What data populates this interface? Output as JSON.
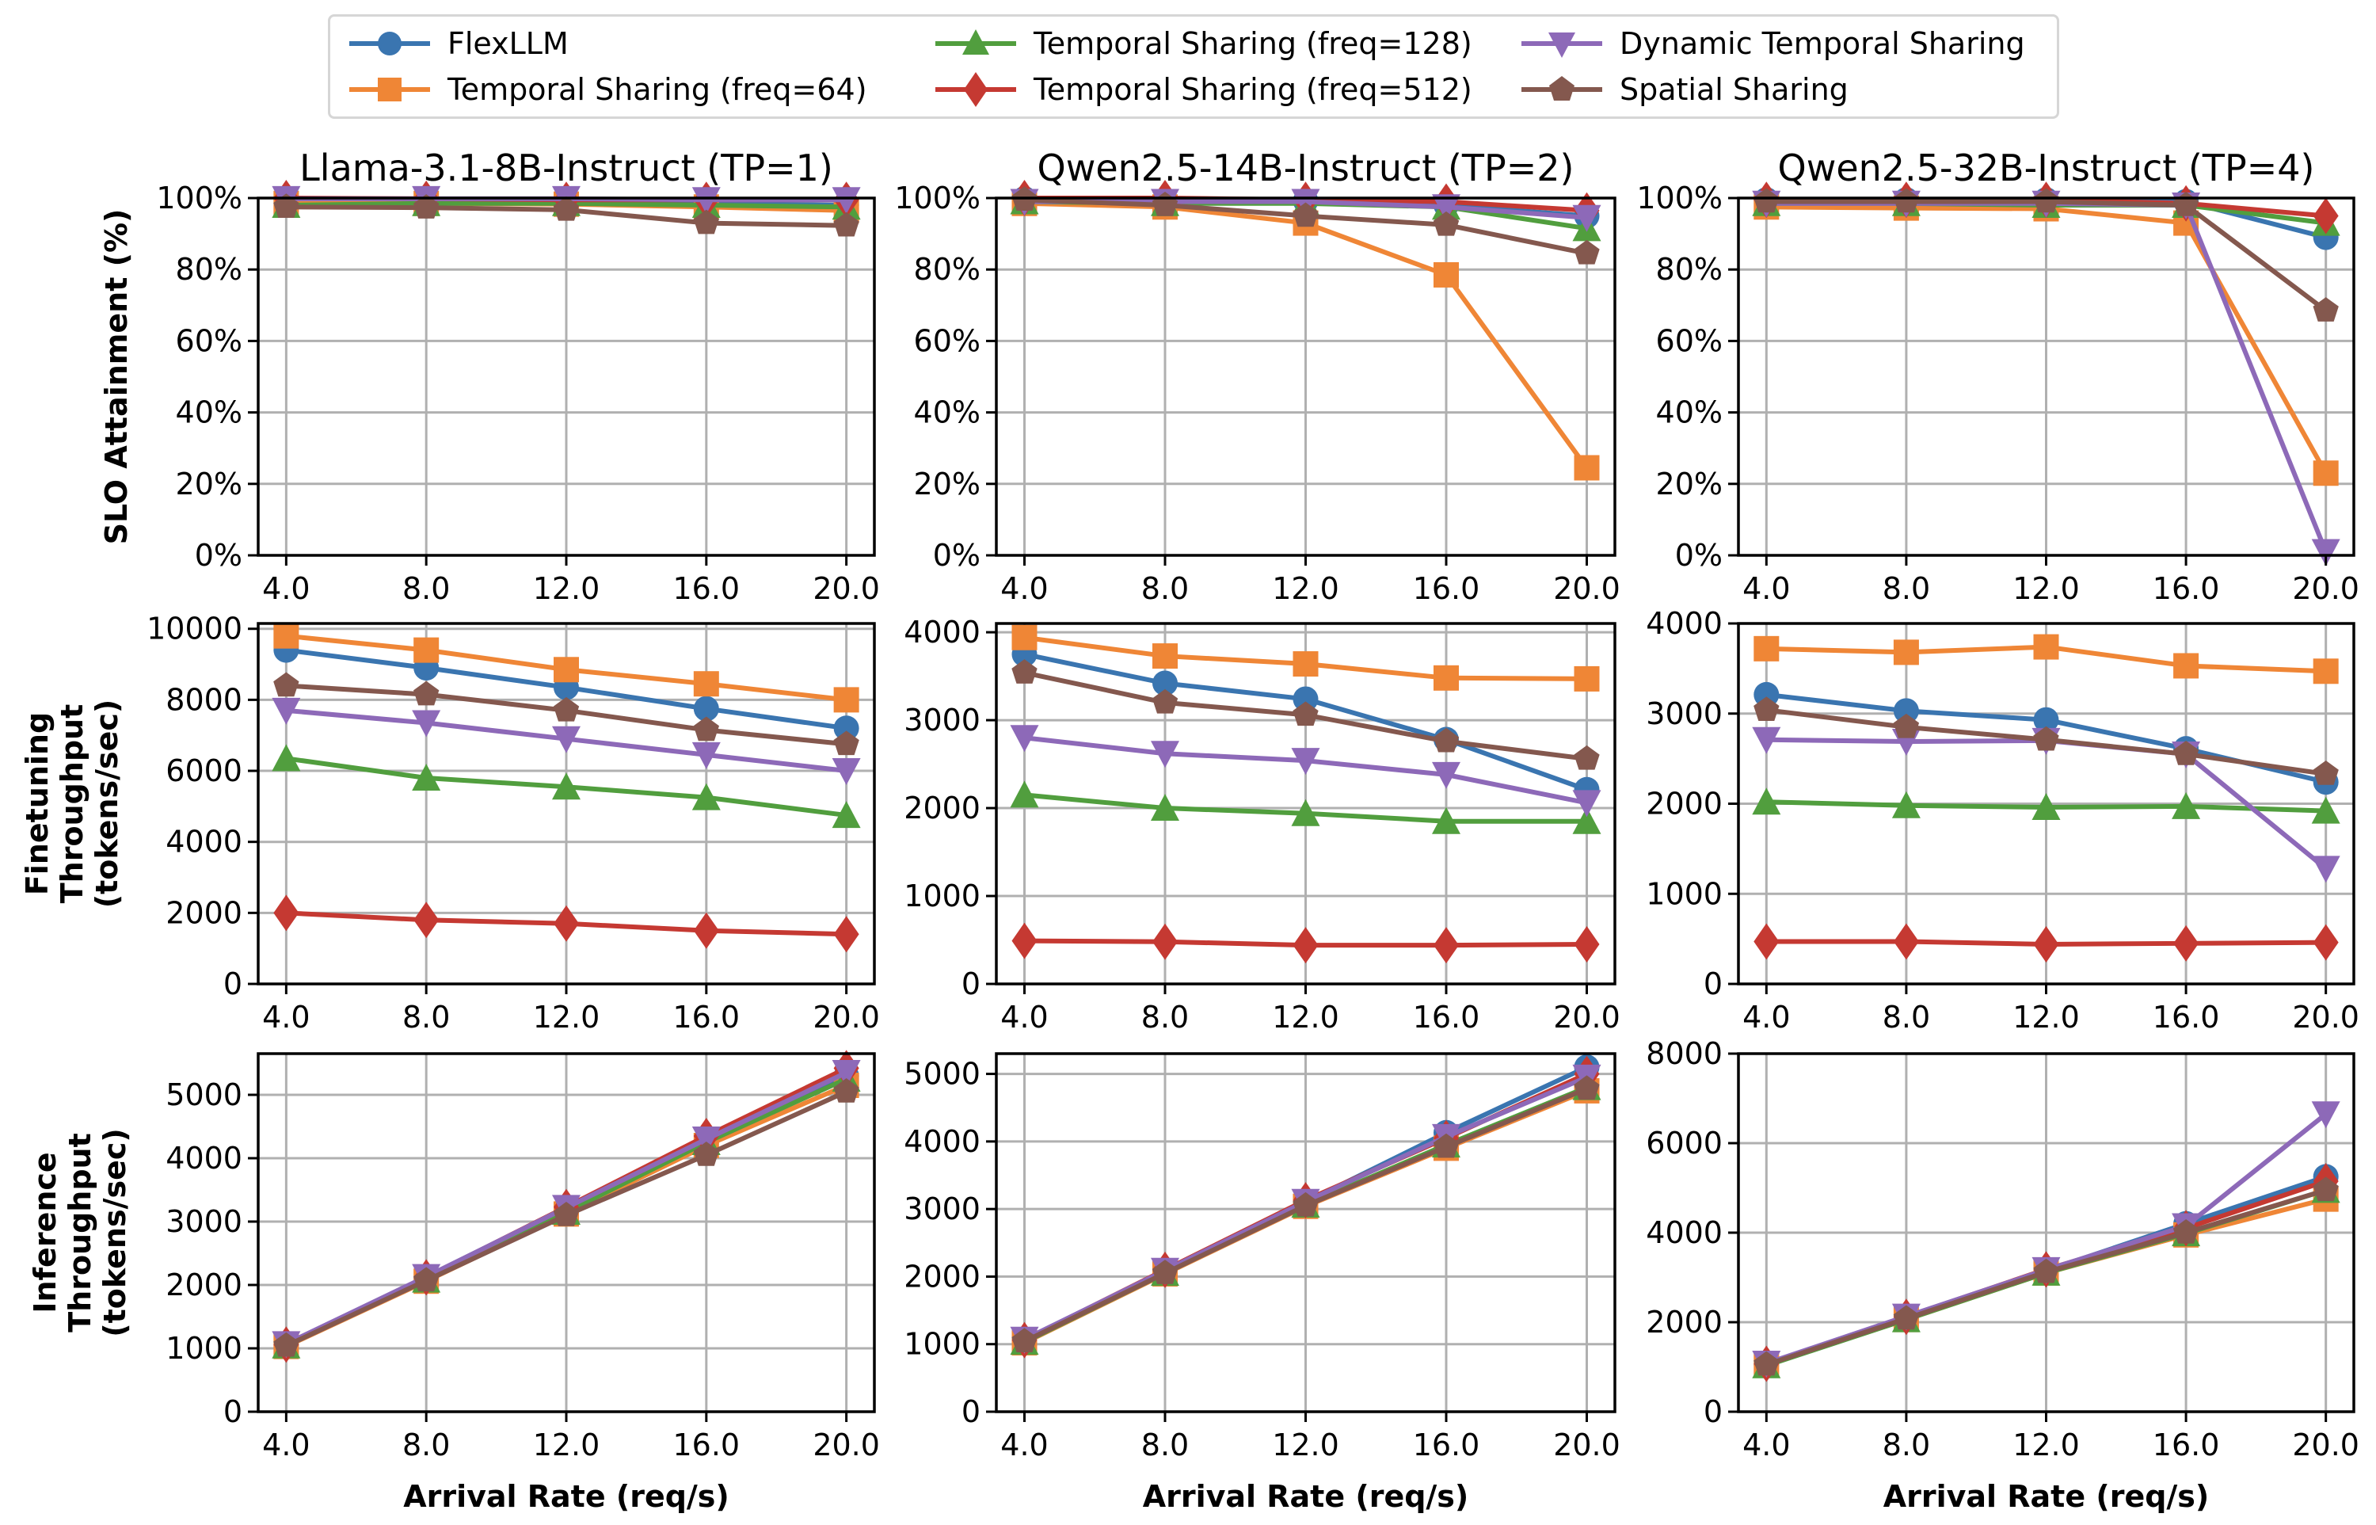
{
  "chart_data": {
    "type": "line",
    "layout": "3x3 grid",
    "legend": {
      "placement": "top-center",
      "columns": 3,
      "entries": [
        {
          "name": "FlexLLM",
          "color": "#3a75b0",
          "marker": "circle"
        },
        {
          "name": "Temporal Sharing (freq=64)",
          "color": "#ef8636",
          "marker": "square"
        },
        {
          "name": "Temporal Sharing (freq=128)",
          "color": "#519e3e",
          "marker": "triangle-up"
        },
        {
          "name": "Temporal Sharing (freq=512)",
          "color": "#c53932",
          "marker": "diamond"
        },
        {
          "name": "Dynamic Temporal Sharing",
          "color": "#8d69b8",
          "marker": "triangle-down"
        },
        {
          "name": "Spatial Sharing",
          "color": "#84584e",
          "marker": "pentagon"
        }
      ]
    },
    "column_titles": [
      "Llama-3.1-8B-Instruct (TP=1)",
      "Qwen2.5-14B-Instruct (TP=2)",
      "Qwen2.5-32B-Instruct (TP=4)"
    ],
    "row_ylabels": [
      [
        "SLO Attainment (%)"
      ],
      [
        "Finetuning",
        "Throughput",
        "(tokens/sec)"
      ],
      [
        "Inference",
        "Throughput",
        "(tokens/sec)"
      ]
    ],
    "xlabel": "Arrival Rate (req/s)",
    "x": [
      4.0,
      8.0,
      12.0,
      16.0,
      20.0
    ],
    "x_tick_labels": [
      "4.0",
      "8.0",
      "12.0",
      "16.0",
      "20.0"
    ],
    "xlim": [
      3.2,
      20.8
    ],
    "grid": true,
    "subplots": [
      {
        "row": 0,
        "col": 0,
        "ylim": [
          0,
          100
        ],
        "yticks": [
          0,
          20,
          40,
          60,
          80,
          100
        ],
        "ytick_labels": [
          "0%",
          "20%",
          "40%",
          "60%",
          "80%",
          "100%"
        ],
        "series": [
          {
            "name": "FlexLLM",
            "values": [
              99.5,
              99.3,
              99.0,
              98.5,
              98.0
            ]
          },
          {
            "name": "Temporal Sharing (freq=64)",
            "values": [
              98.5,
              98.5,
              98.3,
              97.5,
              96.5
            ]
          },
          {
            "name": "Temporal Sharing (freq=128)",
            "values": [
              98.0,
              98.5,
              98.5,
              98.0,
              97.5
            ]
          },
          {
            "name": "Temporal Sharing (freq=512)",
            "values": [
              100,
              99.8,
              99.5,
              99.5,
              99.5
            ]
          },
          {
            "name": "Dynamic Temporal Sharing",
            "values": [
              99.8,
              99.8,
              99.8,
              99.5,
              99.5
            ]
          },
          {
            "name": "Spatial Sharing",
            "values": [
              97.5,
              97.3,
              96.7,
              93.0,
              92.3
            ]
          }
        ]
      },
      {
        "row": 0,
        "col": 1,
        "ylim": [
          0,
          100
        ],
        "yticks": [
          0,
          20,
          40,
          60,
          80,
          100
        ],
        "ytick_labels": [
          "0%",
          "20%",
          "40%",
          "60%",
          "80%",
          "100%"
        ],
        "series": [
          {
            "name": "FlexLLM",
            "values": [
              99.8,
              99.5,
              99.2,
              98.0,
              95.0
            ]
          },
          {
            "name": "Temporal Sharing (freq=64)",
            "values": [
              98.5,
              97.5,
              93.0,
              78.5,
              24.5
            ]
          },
          {
            "name": "Temporal Sharing (freq=128)",
            "values": [
              99.0,
              98.5,
              98.5,
              97.5,
              91.5
            ]
          },
          {
            "name": "Temporal Sharing (freq=512)",
            "values": [
              100,
              100,
              99.5,
              99.0,
              96.5
            ]
          },
          {
            "name": "Dynamic Temporal Sharing",
            "values": [
              99.0,
              99.0,
              99.0,
              97.5,
              94.5
            ]
          },
          {
            "name": "Spatial Sharing",
            "values": [
              99.5,
              98.0,
              95.0,
              92.5,
              84.5
            ]
          }
        ]
      },
      {
        "row": 0,
        "col": 2,
        "ylim": [
          0,
          100
        ],
        "yticks": [
          0,
          20,
          40,
          60,
          80,
          100
        ],
        "ytick_labels": [
          "0%",
          "20%",
          "40%",
          "60%",
          "80%",
          "100%"
        ],
        "series": [
          {
            "name": "FlexLLM",
            "values": [
              99.5,
              99.5,
              99.5,
              99.0,
              89.0
            ]
          },
          {
            "name": "Temporal Sharing (freq=64)",
            "values": [
              97.5,
              97.2,
              97.0,
              93.0,
              23.0
            ]
          },
          {
            "name": "Temporal Sharing (freq=128)",
            "values": [
              98.5,
              98.5,
              98.0,
              98.0,
              93.0
            ]
          },
          {
            "name": "Temporal Sharing (freq=512)",
            "values": [
              99.5,
              99.5,
              99.5,
              98.5,
              95.0
            ]
          },
          {
            "name": "Dynamic Temporal Sharing",
            "values": [
              98.5,
              98.5,
              98.5,
              98.0,
              1.0
            ]
          },
          {
            "name": "Spatial Sharing",
            "values": [
              99.0,
              99.0,
              99.0,
              98.0,
              68.5
            ]
          }
        ]
      },
      {
        "row": 1,
        "col": 0,
        "ylim": [
          0,
          10150
        ],
        "yticks": [
          0,
          2000,
          4000,
          6000,
          8000,
          10000
        ],
        "ytick_labels": [
          "0",
          "2000",
          "4000",
          "6000",
          "8000",
          "10000"
        ],
        "series": [
          {
            "name": "FlexLLM",
            "values": [
              9400,
              8900,
              8350,
              7750,
              7200
            ]
          },
          {
            "name": "Temporal Sharing (freq=64)",
            "values": [
              9800,
              9400,
              8850,
              8450,
              8000
            ]
          },
          {
            "name": "Temporal Sharing (freq=128)",
            "values": [
              6350,
              5800,
              5550,
              5250,
              4750
            ]
          },
          {
            "name": "Temporal Sharing (freq=512)",
            "values": [
              2000,
              1800,
              1700,
              1500,
              1400
            ]
          },
          {
            "name": "Dynamic Temporal Sharing",
            "values": [
              7700,
              7350,
              6900,
              6450,
              6000
            ]
          },
          {
            "name": "Spatial Sharing",
            "values": [
              8400,
              8150,
              7700,
              7150,
              6750
            ]
          }
        ]
      },
      {
        "row": 1,
        "col": 1,
        "ylim": [
          0,
          4100
        ],
        "yticks": [
          0,
          1000,
          2000,
          3000,
          4000
        ],
        "ytick_labels": [
          "0",
          "1000",
          "2000",
          "3000",
          "4000"
        ],
        "series": [
          {
            "name": "FlexLLM",
            "values": [
              3750,
              3420,
              3240,
              2780,
              2210
            ]
          },
          {
            "name": "Temporal Sharing (freq=64)",
            "values": [
              3940,
              3730,
              3640,
              3480,
              3470
            ]
          },
          {
            "name": "Temporal Sharing (freq=128)",
            "values": [
              2150,
              2000,
              1940,
              1850,
              1850
            ]
          },
          {
            "name": "Temporal Sharing (freq=512)",
            "values": [
              490,
              480,
              440,
              440,
              450
            ]
          },
          {
            "name": "Dynamic Temporal Sharing",
            "values": [
              2800,
              2620,
              2540,
              2380,
              2060
            ]
          },
          {
            "name": "Spatial Sharing",
            "values": [
              3540,
              3200,
              3060,
              2760,
              2560
            ]
          }
        ]
      },
      {
        "row": 1,
        "col": 2,
        "ylim": [
          0,
          4000
        ],
        "yticks": [
          0,
          1000,
          2000,
          3000,
          4000
        ],
        "ytick_labels": [
          "0",
          "1000",
          "2000",
          "3000",
          "4000"
        ],
        "series": [
          {
            "name": "FlexLLM",
            "values": [
              3210,
              3030,
              2930,
              2610,
              2240
            ]
          },
          {
            "name": "Temporal Sharing (freq=64)",
            "values": [
              3720,
              3680,
              3740,
              3530,
              3470
            ]
          },
          {
            "name": "Temporal Sharing (freq=128)",
            "values": [
              2020,
              1980,
              1960,
              1970,
              1920
            ]
          },
          {
            "name": "Temporal Sharing (freq=512)",
            "values": [
              470,
              470,
              440,
              450,
              460
            ]
          },
          {
            "name": "Dynamic Temporal Sharing",
            "values": [
              2710,
              2690,
              2700,
              2550,
              1280
            ]
          },
          {
            "name": "Spatial Sharing",
            "values": [
              3040,
              2850,
              2710,
              2550,
              2330
            ]
          }
        ]
      },
      {
        "row": 2,
        "col": 0,
        "ylim": [
          0,
          5650
        ],
        "yticks": [
          0,
          1000,
          2000,
          3000,
          4000,
          5000
        ],
        "ytick_labels": [
          "0",
          "1000",
          "2000",
          "3000",
          "4000",
          "5000"
        ],
        "series": [
          {
            "name": "FlexLLM",
            "values": [
              1050,
              2100,
              3150,
              4250,
              5300
            ]
          },
          {
            "name": "Temporal Sharing (freq=64)",
            "values": [
              1030,
              2060,
              3120,
              4200,
              5150
            ]
          },
          {
            "name": "Temporal Sharing (freq=128)",
            "values": [
              1040,
              2080,
              3150,
              4250,
              5250
            ]
          },
          {
            "name": "Temporal Sharing (freq=512)",
            "values": [
              1060,
              2120,
              3230,
              4350,
              5420
            ]
          },
          {
            "name": "Dynamic Temporal Sharing",
            "values": [
              1070,
              2130,
              3220,
              4300,
              5350
            ]
          },
          {
            "name": "Spatial Sharing",
            "values": [
              1040,
              2070,
              3100,
              4050,
              5050
            ]
          }
        ]
      },
      {
        "row": 2,
        "col": 1,
        "ylim": [
          0,
          5300
        ],
        "yticks": [
          0,
          1000,
          2000,
          3000,
          4000,
          5000
        ],
        "ytick_labels": [
          "0",
          "1000",
          "2000",
          "3000",
          "4000",
          "5000"
        ],
        "series": [
          {
            "name": "FlexLLM",
            "values": [
              1050,
              2080,
              3100,
              4130,
              5100
            ]
          },
          {
            "name": "Temporal Sharing (freq=64)",
            "values": [
              1020,
              2040,
              3040,
              3900,
              4750
            ]
          },
          {
            "name": "Temporal Sharing (freq=128)",
            "values": [
              1030,
              2050,
              3060,
              3950,
              4800
            ]
          },
          {
            "name": "Temporal Sharing (freq=512)",
            "values": [
              1060,
              2100,
              3130,
              4050,
              5000
            ]
          },
          {
            "name": "Dynamic Temporal Sharing",
            "values": [
              1070,
              2090,
              3110,
              4070,
              4950
            ]
          },
          {
            "name": "Spatial Sharing",
            "values": [
              1040,
              2050,
              3050,
              3920,
              4780
            ]
          }
        ]
      },
      {
        "row": 2,
        "col": 2,
        "ylim": [
          0,
          8000
        ],
        "yticks": [
          0,
          2000,
          4000,
          6000,
          8000
        ],
        "ytick_labels": [
          "0",
          "2000",
          "4000",
          "6000",
          "8000"
        ],
        "series": [
          {
            "name": "FlexLLM",
            "values": [
              1050,
              2100,
              3150,
              4200,
              5250
            ]
          },
          {
            "name": "Temporal Sharing (freq=64)",
            "values": [
              1040,
              2060,
              3100,
              3950,
              4750
            ]
          },
          {
            "name": "Temporal Sharing (freq=128)",
            "values": [
              1030,
              2060,
              3100,
              3980,
              4950
            ]
          },
          {
            "name": "Temporal Sharing (freq=512)",
            "values": [
              1070,
              2120,
              3180,
              4100,
              5150
            ]
          },
          {
            "name": "Dynamic Temporal Sharing",
            "values": [
              1080,
              2130,
              3170,
              4150,
              6650
            ]
          },
          {
            "name": "Spatial Sharing",
            "values": [
              1050,
              2080,
              3120,
              4000,
              4950
            ]
          }
        ]
      }
    ]
  }
}
